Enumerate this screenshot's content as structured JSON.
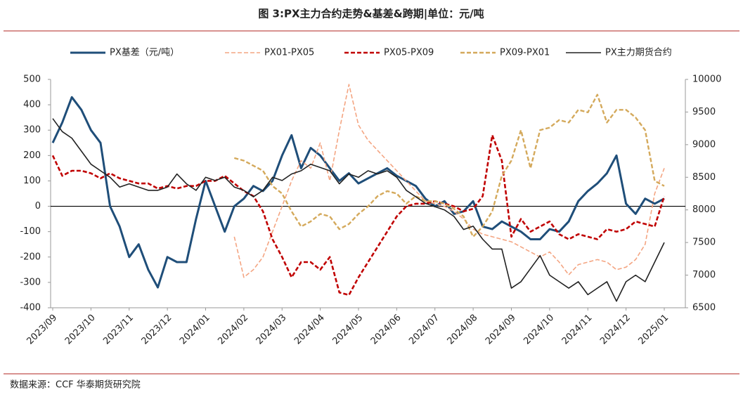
{
  "chart_data": {
    "type": "line",
    "title": "图 3:PX主力合约走势&基差&跨期|单位：元/吨",
    "source": "数据来源：CCF  华泰期货研究院",
    "categories": [
      "2023/09",
      null,
      null,
      null,
      "2023/10",
      null,
      null,
      null,
      "2023/11",
      null,
      null,
      null,
      "2023/12",
      null,
      null,
      null,
      "2024/01",
      null,
      null,
      null,
      "2024/02",
      null,
      null,
      null,
      "2024/03",
      null,
      null,
      null,
      "2024/04",
      null,
      null,
      null,
      "2024/05",
      null,
      null,
      null,
      "2024/06",
      null,
      null,
      null,
      "2024/07",
      null,
      null,
      null,
      "2024/08",
      null,
      null,
      null,
      "2024/09",
      null,
      null,
      null,
      "2024/10",
      null,
      null,
      null,
      "2024/11",
      null,
      null,
      null,
      "2024/12",
      null,
      null,
      null,
      "2025/01"
    ],
    "ylim": [
      -400,
      500
    ],
    "yticks": [
      -400,
      -300,
      -200,
      -100,
      0,
      100,
      200,
      300,
      400,
      500
    ],
    "y2lim": [
      6500,
      10000
    ],
    "y2ticks": [
      6500,
      7000,
      7500,
      8000,
      8500,
      9000,
      9500,
      10000
    ],
    "series": [
      {
        "name": "PX基差（元/吨）",
        "color": "#1f4e79",
        "style": "solid",
        "values": [
          250,
          330,
          430,
          380,
          300,
          250,
          0,
          -80,
          -200,
          -150,
          -250,
          -320,
          -200,
          -220,
          -220,
          -50,
          100,
          0,
          -100,
          0,
          30,
          80,
          60,
          100,
          200,
          280,
          150,
          230,
          200,
          150,
          100,
          130,
          90,
          110,
          130,
          150,
          120,
          100,
          80,
          30,
          0,
          20,
          -30,
          -20,
          20,
          -80,
          -90,
          -60,
          -80,
          -100,
          -130,
          -130,
          -90,
          -100,
          -60,
          20,
          60,
          90,
          130,
          200,
          10,
          -30,
          30,
          10,
          30
        ]
      },
      {
        "name": "PX01-PX05",
        "color": "#f4a582",
        "style": "dashed",
        "values": [
          null,
          null,
          null,
          null,
          null,
          null,
          null,
          null,
          null,
          null,
          null,
          null,
          null,
          null,
          null,
          null,
          null,
          null,
          null,
          -120,
          -280,
          -250,
          -200,
          -100,
          0,
          100,
          180,
          150,
          250,
          100,
          300,
          480,
          320,
          260,
          220,
          180,
          140,
          100,
          60,
          20,
          10,
          0,
          -20,
          -50,
          -90,
          -110,
          -120,
          -130,
          -140,
          -160,
          -180,
          -200,
          -180,
          -220,
          -270,
          -230,
          -220,
          -210,
          -220,
          -250,
          -240,
          -210,
          -150,
          50,
          150
        ]
      },
      {
        "name": "PX05-PX09",
        "color": "#c00000",
        "style": "dashed",
        "values": [
          200,
          120,
          140,
          140,
          130,
          110,
          130,
          110,
          100,
          90,
          90,
          70,
          80,
          70,
          80,
          80,
          100,
          100,
          120,
          90,
          60,
          40,
          -20,
          -130,
          -200,
          -280,
          -220,
          -220,
          -250,
          -200,
          -340,
          -350,
          -280,
          -220,
          -160,
          -100,
          -40,
          0,
          10,
          10,
          20,
          10,
          0,
          -20,
          -10,
          40,
          280,
          180,
          -120,
          -50,
          -100,
          -80,
          -60,
          -110,
          -130,
          -110,
          -120,
          -130,
          -90,
          -100,
          -90,
          -60,
          -70,
          -80,
          40
        ]
      },
      {
        "name": "PX09-PX01",
        "color": "#d4a95b",
        "style": "dashed",
        "values": [
          null,
          null,
          null,
          null,
          null,
          null,
          null,
          null,
          null,
          null,
          null,
          null,
          null,
          null,
          null,
          null,
          null,
          null,
          null,
          190,
          180,
          160,
          140,
          80,
          50,
          -20,
          -80,
          -60,
          -30,
          -40,
          -90,
          -70,
          -30,
          0,
          40,
          60,
          50,
          10,
          40,
          20,
          20,
          10,
          -10,
          -40,
          -120,
          -80,
          -20,
          120,
          180,
          300,
          150,
          300,
          310,
          340,
          330,
          380,
          370,
          440,
          330,
          380,
          380,
          350,
          300,
          100,
          80
        ]
      },
      {
        "name": "PX主力期货合约",
        "color": "#222222",
        "style": "solid",
        "axis": "y2",
        "values": [
          9400,
          9200,
          9100,
          8900,
          8700,
          8600,
          8500,
          8350,
          8400,
          8350,
          8300,
          8300,
          8350,
          8550,
          8400,
          8300,
          8500,
          8450,
          8500,
          8350,
          8300,
          8200,
          8300,
          8500,
          8450,
          8550,
          8600,
          8700,
          8650,
          8600,
          8400,
          8550,
          8500,
          8600,
          8550,
          8600,
          8500,
          8300,
          8200,
          8100,
          8050,
          8000,
          7900,
          7700,
          7750,
          7550,
          7400,
          7400,
          6800,
          6900,
          7100,
          7300,
          7000,
          6900,
          6800,
          6900,
          6700,
          6800,
          6900,
          6600,
          6900,
          7000,
          6900,
          7200,
          7500
        ]
      }
    ]
  }
}
